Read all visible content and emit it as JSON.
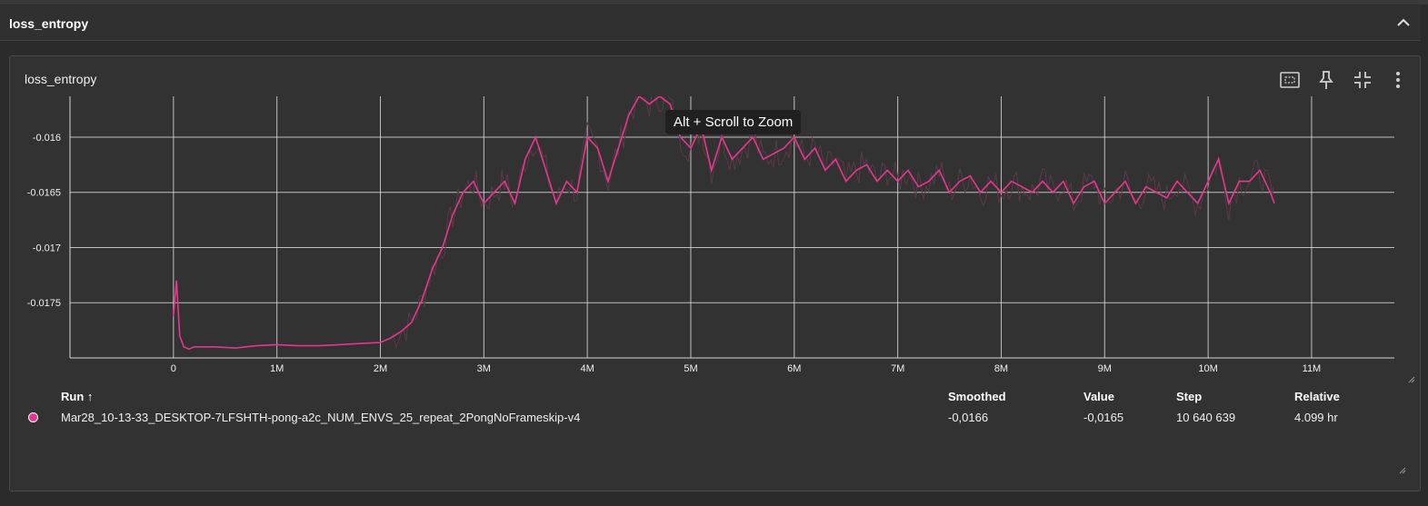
{
  "section": {
    "title": "loss_entropy",
    "collapse_icon": "chevron-up-icon"
  },
  "card": {
    "title": "loss_entropy",
    "tools": [
      "fit-domain-icon",
      "pin-icon",
      "collapse-size-icon",
      "more-vert-icon"
    ],
    "tooltip": "Alt + Scroll to Zoom"
  },
  "colors": {
    "series": "#e8368f",
    "raw": "#5a3a48",
    "grid": "#d8d8d8",
    "bg": "#323232"
  },
  "chart_data": {
    "type": "line",
    "title": "",
    "xlabel": "",
    "ylabel": "",
    "xlim": [
      -1000000,
      11800000
    ],
    "ylim": [
      -0.018,
      -0.01563
    ],
    "x_ticks": [
      0,
      1000000,
      2000000,
      3000000,
      4000000,
      5000000,
      6000000,
      7000000,
      8000000,
      9000000,
      10000000,
      11000000
    ],
    "x_tick_labels": [
      "0",
      "1M",
      "2M",
      "3M",
      "4M",
      "5M",
      "6M",
      "7M",
      "8M",
      "9M",
      "10M",
      "11M"
    ],
    "y_ticks": [
      -0.0175,
      -0.017,
      -0.0165,
      -0.016
    ],
    "y_tick_labels": [
      "-0.0175",
      "-0.017",
      "-0.0165",
      "-0.016"
    ],
    "grid": true,
    "series": [
      {
        "name": "Mar28_10-13-33_DESKTOP-7LFSHTH-pong-a2c_NUM_ENVS_25_repeat_2PongNoFrameskip-v4",
        "x": [
          0,
          30000,
          60000,
          100000,
          150000,
          200000,
          400000,
          600000,
          800000,
          1000000,
          1200000,
          1400000,
          1600000,
          1800000,
          2000000,
          2100000,
          2200000,
          2300000,
          2400000,
          2500000,
          2600000,
          2700000,
          2800000,
          2900000,
          3000000,
          3100000,
          3200000,
          3300000,
          3400000,
          3500000,
          3600000,
          3700000,
          3800000,
          3900000,
          4000000,
          4100000,
          4200000,
          4300000,
          4400000,
          4500000,
          4600000,
          4700000,
          4800000,
          4900000,
          5000000,
          5100000,
          5200000,
          5300000,
          5400000,
          5500000,
          5600000,
          5700000,
          5800000,
          5900000,
          6000000,
          6100000,
          6200000,
          6300000,
          6400000,
          6500000,
          6600000,
          6700000,
          6800000,
          6900000,
          7000000,
          7100000,
          7200000,
          7300000,
          7400000,
          7500000,
          7600000,
          7700000,
          7800000,
          7900000,
          8000000,
          8100000,
          8200000,
          8300000,
          8400000,
          8500000,
          8600000,
          8700000,
          8800000,
          8900000,
          9000000,
          9100000,
          9200000,
          9300000,
          9400000,
          9500000,
          9600000,
          9700000,
          9800000,
          9900000,
          10000000,
          10100000,
          10200000,
          10300000,
          10400000,
          10500000,
          10600000,
          10640639
        ],
        "y": [
          -0.01762,
          -0.0173,
          -0.0178,
          -0.0179,
          -0.01792,
          -0.0179,
          -0.0179,
          -0.01791,
          -0.01789,
          -0.01788,
          -0.01789,
          -0.01789,
          -0.01788,
          -0.01787,
          -0.01786,
          -0.01782,
          -0.01776,
          -0.01768,
          -0.01748,
          -0.0172,
          -0.017,
          -0.0167,
          -0.0165,
          -0.0164,
          -0.0166,
          -0.0165,
          -0.0164,
          -0.0166,
          -0.0162,
          -0.016,
          -0.0163,
          -0.0166,
          -0.0164,
          -0.0165,
          -0.016,
          -0.0161,
          -0.0164,
          -0.0161,
          -0.0158,
          -0.01563,
          -0.0157,
          -0.01563,
          -0.0157,
          -0.016,
          -0.0161,
          -0.0159,
          -0.0163,
          -0.016,
          -0.0162,
          -0.0161,
          -0.016,
          -0.0162,
          -0.01615,
          -0.0161,
          -0.016,
          -0.0162,
          -0.0161,
          -0.0163,
          -0.0162,
          -0.0164,
          -0.0163,
          -0.01625,
          -0.0164,
          -0.0163,
          -0.0164,
          -0.0163,
          -0.01645,
          -0.0164,
          -0.0163,
          -0.0165,
          -0.0164,
          -0.01635,
          -0.0165,
          -0.0164,
          -0.0165,
          -0.0164,
          -0.01645,
          -0.0165,
          -0.0164,
          -0.0165,
          -0.0164,
          -0.0166,
          -0.01645,
          -0.0164,
          -0.0166,
          -0.0165,
          -0.0164,
          -0.0166,
          -0.01645,
          -0.0165,
          -0.01655,
          -0.0164,
          -0.0165,
          -0.0166,
          -0.0164,
          -0.0162,
          -0.0166,
          -0.0164,
          -0.0164,
          -0.0163,
          -0.0165,
          -0.0166
        ]
      }
    ]
  },
  "table": {
    "headers": {
      "run": "Run ↑",
      "smoothed": "Smoothed",
      "value": "Value",
      "step": "Step",
      "relative": "Relative"
    },
    "rows": [
      {
        "run": "Mar28_10-13-33_DESKTOP-7LFSHTH-pong-a2c_NUM_ENVS_25_repeat_2PongNoFrameskip-v4",
        "smoothed": "-0,0166",
        "value": "-0,0165",
        "step": "10 640 639",
        "relative": "4.099 hr"
      }
    ]
  }
}
